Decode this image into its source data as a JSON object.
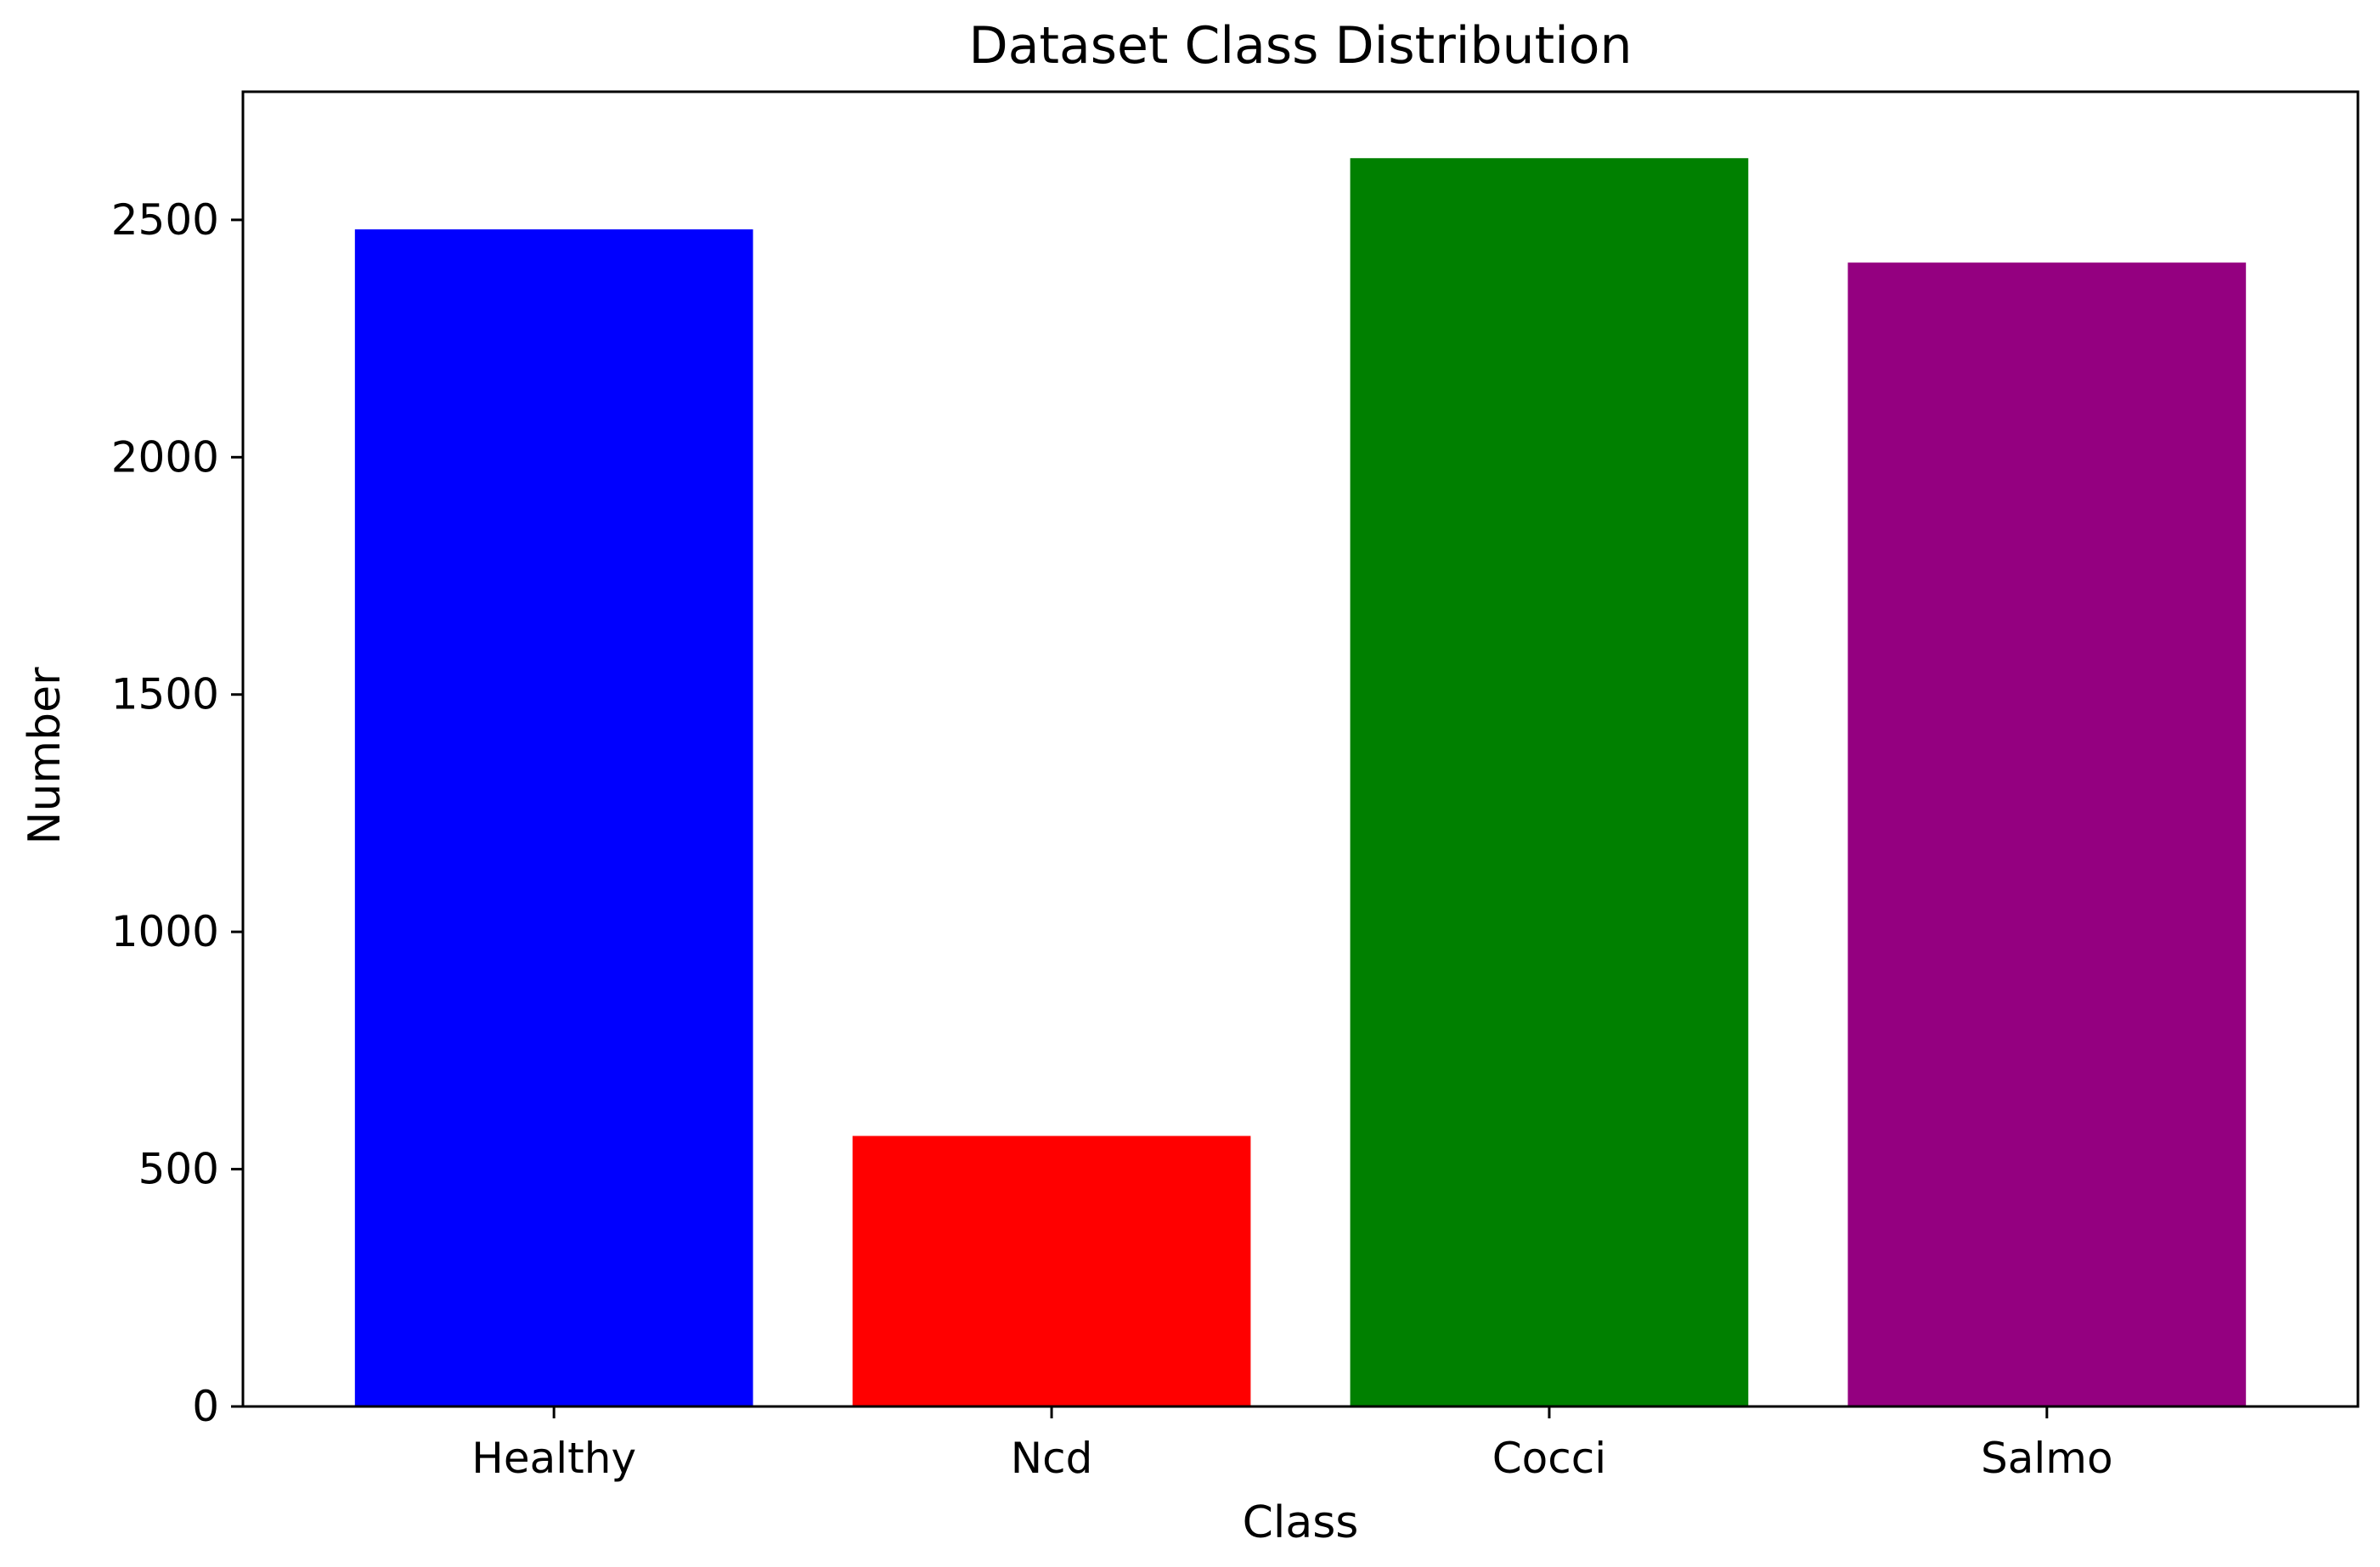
{
  "chart_data": {
    "type": "bar",
    "title": "Dataset Class Distribution",
    "xlabel": "Class",
    "ylabel": "Number",
    "categories": [
      "Healthy",
      "Ncd",
      "Cocci",
      "Salmo"
    ],
    "values": [
      2480,
      570,
      2630,
      2410
    ],
    "colors": [
      "#0000ff",
      "#ff0000",
      "#008000",
      "#940080"
    ],
    "ylim": [
      0,
      2770
    ],
    "yticks": [
      0,
      500,
      1000,
      1500,
      2000,
      2500
    ],
    "grid": false,
    "legend": "none"
  }
}
